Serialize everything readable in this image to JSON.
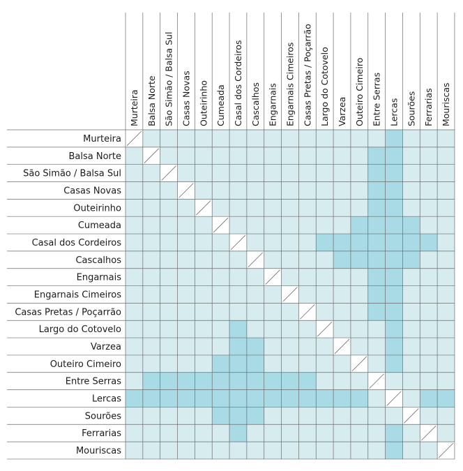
{
  "labels": [
    "Murteira",
    "Balsa Norte",
    "São Simão / Balsa Sul",
    "Casas Novas",
    "Outeirinho",
    "Cumeada",
    "Casal dos Cordeiros",
    "Cascalhos",
    "Engarnais",
    "Engarnais Cimeiros",
    "Casas Pretas / Poçarrão",
    "Largo do Cotovelo",
    "Varzea",
    "Outeiro Cimeiro",
    "Entre Serras",
    "Lercas",
    "Sourões",
    "Ferrarias",
    "Mouriscas"
  ],
  "colors": {
    "light": "#d6ecef",
    "dark": "#a8dbe5",
    "diagonal": "#ffffff",
    "grid": "#6b6b6b"
  },
  "highlighted_pairs": [
    [
      0,
      15
    ],
    [
      1,
      14
    ],
    [
      1,
      15
    ],
    [
      2,
      14
    ],
    [
      2,
      15
    ],
    [
      3,
      14
    ],
    [
      3,
      15
    ],
    [
      4,
      14
    ],
    [
      4,
      15
    ],
    [
      5,
      13
    ],
    [
      5,
      14
    ],
    [
      5,
      15
    ],
    [
      5,
      16
    ],
    [
      6,
      11
    ],
    [
      6,
      12
    ],
    [
      6,
      13
    ],
    [
      6,
      14
    ],
    [
      6,
      15
    ],
    [
      6,
      16
    ],
    [
      6,
      17
    ],
    [
      7,
      12
    ],
    [
      7,
      13
    ],
    [
      7,
      14
    ],
    [
      7,
      15
    ],
    [
      7,
      16
    ],
    [
      8,
      14
    ],
    [
      8,
      15
    ],
    [
      9,
      14
    ],
    [
      9,
      15
    ],
    [
      10,
      14
    ],
    [
      10,
      15
    ],
    [
      11,
      15
    ],
    [
      12,
      15
    ],
    [
      13,
      15
    ],
    [
      15,
      17
    ],
    [
      15,
      18
    ]
  ]
}
